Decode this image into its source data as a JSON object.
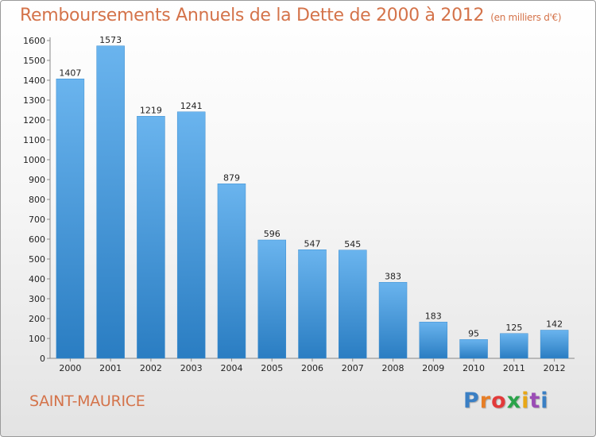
{
  "header": {
    "title": "Remboursements Annuels de la Dette de 2000 à 2012",
    "unit": "(en milliers d'€)"
  },
  "footer": {
    "commune": "SAINT-MAURICE",
    "brand_letters": [
      "P",
      "r",
      "o",
      "x",
      "i",
      "t",
      "i"
    ]
  },
  "colors": {
    "title": "#d4734a",
    "bar_top": "#6ab4ee",
    "bar_bottom": "#2a7dc2"
  },
  "chart_data": {
    "type": "bar",
    "title": "Remboursements Annuels de la Dette de 2000 à 2012",
    "xlabel": "",
    "ylabel": "",
    "categories": [
      "2000",
      "2001",
      "2002",
      "2003",
      "2004",
      "2005",
      "2006",
      "2007",
      "2008",
      "2009",
      "2010",
      "2011",
      "2012"
    ],
    "values": [
      1407,
      1573,
      1219,
      1241,
      879,
      596,
      547,
      545,
      383,
      183,
      95,
      125,
      142
    ],
    "yticks": [
      0,
      100,
      200,
      300,
      400,
      500,
      600,
      700,
      800,
      900,
      1000,
      1100,
      1200,
      1300,
      1400,
      1500,
      1600
    ],
    "ylim": [
      0,
      1600
    ],
    "grid": false,
    "data_labels": true
  }
}
